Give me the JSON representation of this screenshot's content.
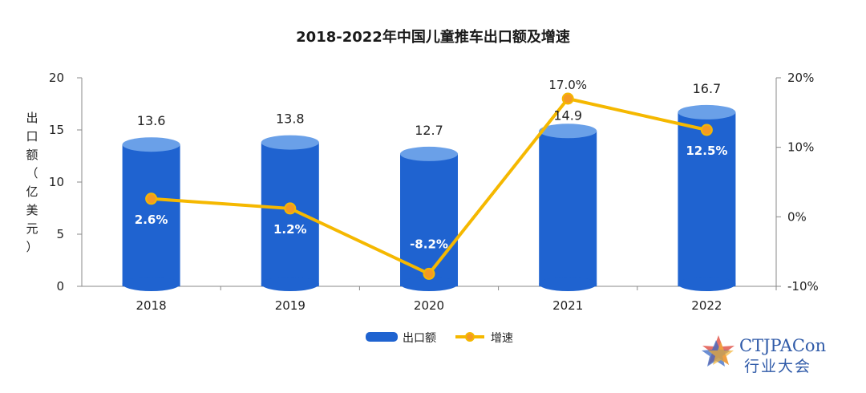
{
  "chart_data": {
    "type": "bar",
    "title": "2018-2022年中国儿童推车出口额及增速",
    "categories": [
      "2018",
      "2019",
      "2020",
      "2021",
      "2022"
    ],
    "series": [
      {
        "name": "出口额",
        "type": "bar",
        "axis": "left",
        "values": [
          13.6,
          13.8,
          12.7,
          14.9,
          16.7
        ],
        "labels": [
          "13.6",
          "13.8",
          "12.7",
          "14.9",
          "16.7"
        ]
      },
      {
        "name": "增速",
        "type": "line",
        "axis": "right",
        "values": [
          2.6,
          1.2,
          -8.2,
          17.0,
          12.5
        ],
        "labels": [
          "2.6%",
          "1.2%",
          "-8.2%",
          "17.0%",
          "12.5%"
        ]
      }
    ],
    "ylabel": "出口额（亿美元）",
    "ylabel_chars": [
      "出",
      "口",
      "额",
      "（",
      "亿",
      "美",
      "元",
      "）"
    ],
    "ylim": [
      0,
      20
    ],
    "yticks": [
      0,
      5,
      10,
      15,
      20
    ],
    "ytick_labels": [
      "0",
      "5",
      "10",
      "15",
      "20"
    ],
    "y2lim": [
      -10,
      20
    ],
    "y2ticks": [
      -10,
      0,
      10,
      20
    ],
    "y2tick_labels": [
      "-10%",
      "0%",
      "10%",
      "20%"
    ],
    "legend": [
      "出口额",
      "增速"
    ],
    "legend_position": "bottom-center"
  },
  "colors": {
    "bar": "#1f63d0",
    "bar_top": "#6aa0e8",
    "line": "#f5b800",
    "marker_fill": "#f59a23",
    "axis": "#888888"
  },
  "logo": {
    "name": "CTJPACon",
    "subtitle": "行业大会"
  }
}
